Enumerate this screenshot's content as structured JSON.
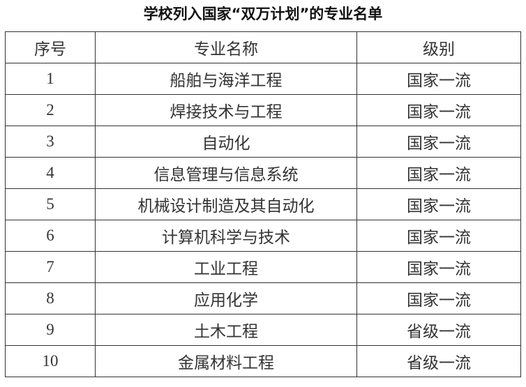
{
  "title": "学校列入国家“双万计划”的专业名单",
  "table": {
    "headers": [
      "序号",
      "专业名称",
      "级别"
    ],
    "rows": [
      [
        "1",
        "船舶与海洋工程",
        "国家一流"
      ],
      [
        "2",
        "焊接技术与工程",
        "国家一流"
      ],
      [
        "3",
        "自动化",
        "国家一流"
      ],
      [
        "4",
        "信息管理与信息系统",
        "国家一流"
      ],
      [
        "5",
        "机械设计制造及其自动化",
        "国家一流"
      ],
      [
        "6",
        "计算机科学与技术",
        "国家一流"
      ],
      [
        "7",
        "工业工程",
        "国家一流"
      ],
      [
        "8",
        "应用化学",
        "国家一流"
      ],
      [
        "9",
        "土木工程",
        "省级一流"
      ],
      [
        "10",
        "金属材料工程",
        "省级一流"
      ]
    ]
  }
}
